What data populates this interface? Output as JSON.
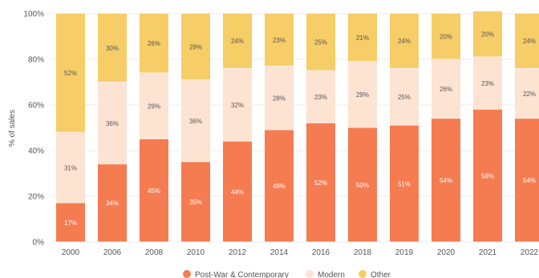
{
  "chart_data": {
    "type": "bar",
    "stacked": true,
    "ylabel": "% of sales",
    "ylim": [
      0,
      100
    ],
    "yticks": [
      "0%",
      "20%",
      "40%",
      "60%",
      "80%",
      "100%"
    ],
    "grid": true,
    "legend_position": "bottom",
    "categories": [
      "2000",
      "2006",
      "2008",
      "2010",
      "2012",
      "2014",
      "2016",
      "2018",
      "2019",
      "2020",
      "2021",
      "2022"
    ],
    "series": [
      {
        "name": "Post-War & Contemporary",
        "color": "#f57b51",
        "label_color": "#ffffff",
        "values": [
          17,
          34,
          45,
          35,
          44,
          49,
          52,
          50,
          51,
          54,
          58,
          54
        ],
        "labels": [
          "17%",
          "34%",
          "45%",
          "35%",
          "44%",
          "49%",
          "52%",
          "50%",
          "51%",
          "54%",
          "58%",
          "54%"
        ]
      },
      {
        "name": "Modern",
        "color": "#fde3d2",
        "label_color": "#555555",
        "values": [
          31,
          36,
          29,
          36,
          32,
          28,
          23,
          29,
          25,
          26,
          23,
          22
        ],
        "labels": [
          "31%",
          "36%",
          "29%",
          "36%",
          "32%",
          "28%",
          "23%",
          "29%",
          "25%",
          "26%",
          "23%",
          "22%"
        ]
      },
      {
        "name": "Other",
        "color": "#f6cd67",
        "label_color": "#555555",
        "values": [
          52,
          30,
          26,
          29,
          24,
          23,
          25,
          21,
          24,
          20,
          20,
          24
        ],
        "labels": [
          "52%",
          "30%",
          "26%",
          "29%",
          "24%",
          "23%",
          "25%",
          "21%",
          "24%",
          "20%",
          "20%",
          "24%"
        ]
      }
    ]
  }
}
